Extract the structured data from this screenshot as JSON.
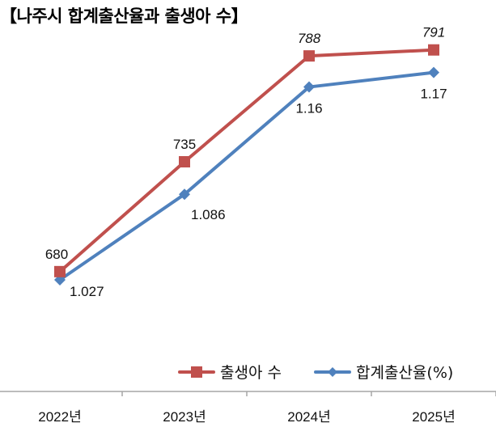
{
  "chart_data": {
    "type": "line",
    "title": "【나주시 합계출산율과 출생아 수】",
    "categories": [
      "2022년",
      "2023년",
      "2024년",
      "2025년"
    ],
    "series": [
      {
        "name": "출생아 수",
        "values": [
          680,
          735,
          788,
          791
        ],
        "labels": [
          "680",
          "735",
          "788",
          "791"
        ],
        "color": "#C0504D",
        "marker": "square",
        "ylim": [
          620,
          816
        ]
      },
      {
        "name": "합계출산율(%)",
        "values": [
          1.027,
          1.086,
          1.16,
          1.17
        ],
        "labels": [
          "1.027",
          "1.086",
          "1.16",
          "1.17"
        ],
        "color": "#4F81BD",
        "marker": "diamond",
        "ylim": [
          0.95,
          1.22
        ]
      }
    ],
    "xlabel": "",
    "ylabel": "",
    "grid": false,
    "legend_position": "bottom-right",
    "axis_color": "#A6A6A6"
  }
}
